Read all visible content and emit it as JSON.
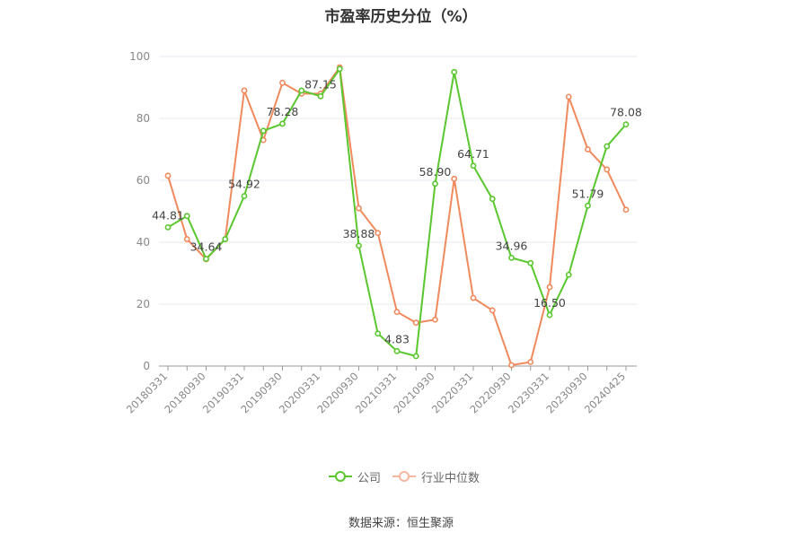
{
  "chart_data": {
    "type": "line",
    "title": "市盈率历史分位（%）",
    "ylim": [
      0,
      100
    ],
    "yticks": [
      0,
      20,
      40,
      60,
      80,
      100
    ],
    "grid": true,
    "legend_position": "bottom",
    "x": [
      "20180331",
      "20180630",
      "20180930",
      "20181231",
      "20190331",
      "20190630",
      "20190930",
      "20191231",
      "20200331",
      "20200630",
      "20200930",
      "20201231",
      "20210331",
      "20210630",
      "20210930",
      "20211231",
      "20220331",
      "20220630",
      "20220930",
      "20221231",
      "20230331",
      "20230630",
      "20230930",
      "20231231",
      "20240425"
    ],
    "x_tick_labels": [
      "20180331",
      "20180930",
      "20190331",
      "20190930",
      "20200331",
      "20200930",
      "20210331",
      "20210930",
      "20220331",
      "20220930",
      "20230331",
      "20230930",
      "20240425"
    ],
    "series": [
      {
        "name": "公司",
        "color": "#5ac72f",
        "values": [
          44.81,
          48.5,
          34.64,
          41.0,
          54.92,
          76.0,
          78.28,
          89.0,
          87.15,
          96.0,
          38.88,
          10.5,
          4.83,
          3.2,
          58.9,
          95.0,
          64.71,
          54.0,
          34.96,
          33.3,
          16.5,
          29.5,
          51.79,
          71.0,
          78.08
        ],
        "labels": {
          "0": "44.81",
          "2": "34.64",
          "4": "54.92",
          "6": "78.28",
          "8": "87.15",
          "10": "38.88",
          "12": "4.83",
          "14": "58.90",
          "16": "64.71",
          "18": "34.96",
          "20": "16.50",
          "22": "51.79",
          "24": "78.08"
        }
      },
      {
        "name": "行业中位数",
        "color": "#f08a5d",
        "values": [
          61.5,
          41.0,
          34.5,
          41.0,
          89.0,
          73.0,
          91.5,
          88.0,
          88.0,
          96.5,
          51.0,
          43.0,
          17.5,
          14.0,
          15.0,
          60.5,
          22.0,
          18.0,
          0.3,
          1.3,
          25.5,
          87.0,
          70.0,
          63.5,
          50.5
        ],
        "labels": {}
      }
    ]
  },
  "legend": {
    "company": "公司",
    "industry": "行业中位数"
  },
  "source": "数据来源：恒生聚源"
}
